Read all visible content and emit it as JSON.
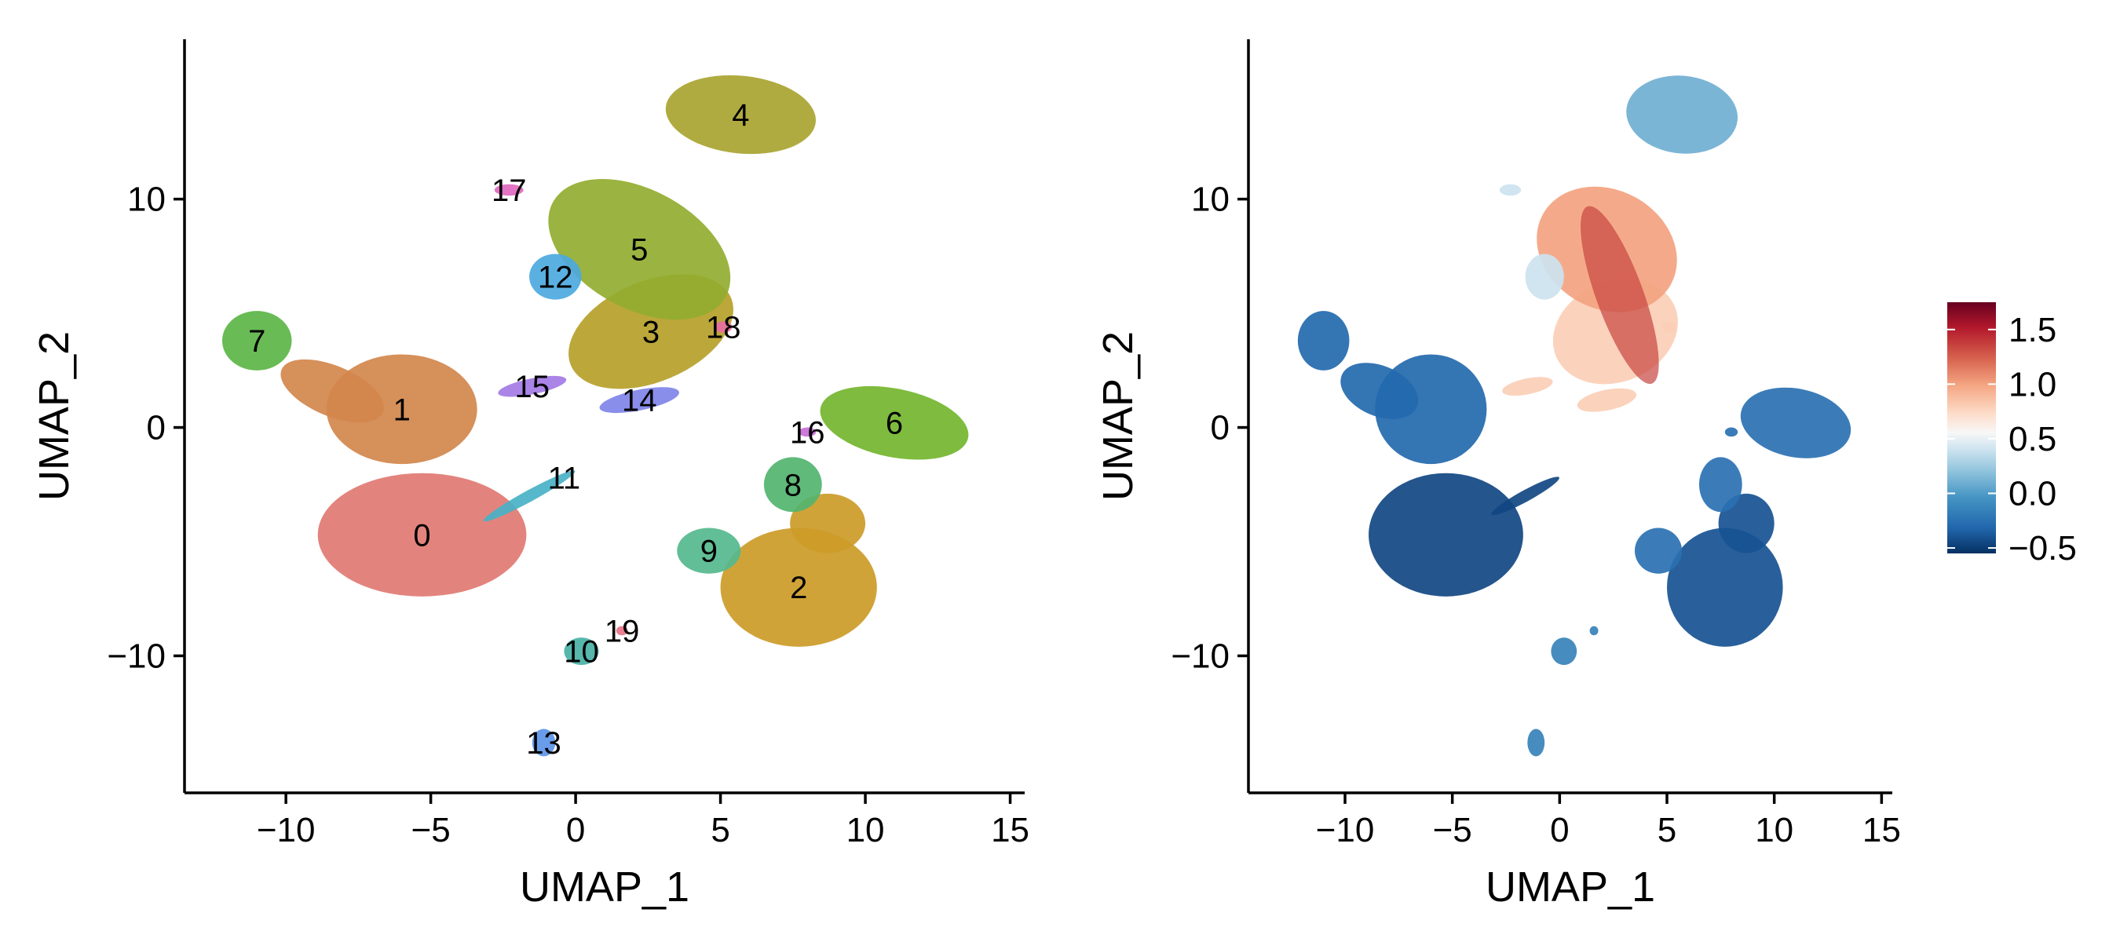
{
  "chart_data": [
    {
      "type": "scatter",
      "title": "",
      "xlabel": "UMAP_1",
      "ylabel": "UMAP_2",
      "xlim": [
        -13.5,
        15.5
      ],
      "ylim": [
        -16,
        17
      ],
      "xticks": [
        -10,
        -5,
        0,
        5,
        10,
        15
      ],
      "yticks": [
        -10,
        0,
        10
      ],
      "xtick_labels": [
        "−10",
        "−5",
        "0",
        "5",
        "10",
        "15"
      ],
      "ytick_labels": [
        "−10",
        "0",
        "10"
      ],
      "legend": "none (cluster numbers labeled on plot)",
      "clusters": [
        {
          "label": "0",
          "x": -5.3,
          "y": -4.7,
          "color": "#E07A72"
        },
        {
          "label": "1",
          "x": -6.0,
          "y": 0.8,
          "color": "#D2874C"
        },
        {
          "label": "2",
          "x": 7.7,
          "y": -7.0,
          "color": "#CC9B28"
        },
        {
          "label": "3",
          "x": 2.6,
          "y": 4.2,
          "color": "#B6A02A"
        },
        {
          "label": "4",
          "x": 5.7,
          "y": 13.7,
          "color": "#A9A430"
        },
        {
          "label": "5",
          "x": 2.2,
          "y": 7.8,
          "color": "#93AC30"
        },
        {
          "label": "6",
          "x": 11.0,
          "y": 0.2,
          "color": "#74B52E"
        },
        {
          "label": "7",
          "x": -11.0,
          "y": 3.8,
          "color": "#5CB547"
        },
        {
          "label": "8",
          "x": 7.5,
          "y": -2.5,
          "color": "#53B46F"
        },
        {
          "label": "9",
          "x": 4.6,
          "y": -5.4,
          "color": "#55B98E"
        },
        {
          "label": "10",
          "x": 0.2,
          "y": -9.8,
          "color": "#49B1A6"
        },
        {
          "label": "11",
          "x": -0.4,
          "y": -2.2,
          "color": "#48B2C6"
        },
        {
          "label": "12",
          "x": -0.7,
          "y": 6.6,
          "color": "#4CA9DE"
        },
        {
          "label": "13",
          "x": -1.1,
          "y": -13.8,
          "color": "#5C95E8"
        },
        {
          "label": "14",
          "x": 2.2,
          "y": 1.2,
          "color": "#7F84E8"
        },
        {
          "label": "15",
          "x": -1.5,
          "y": 1.8,
          "color": "#A47AE5"
        },
        {
          "label": "16",
          "x": 8.0,
          "y": -0.2,
          "color": "#C96ED8"
        },
        {
          "label": "17",
          "x": -2.3,
          "y": 10.4,
          "color": "#E068BF"
        },
        {
          "label": "18",
          "x": 5.1,
          "y": 4.4,
          "color": "#E86FA2"
        },
        {
          "label": "19",
          "x": 1.6,
          "y": -8.9,
          "color": "#E87488"
        }
      ]
    },
    {
      "type": "scatter",
      "title": "",
      "xlabel": "UMAP_1",
      "ylabel": "UMAP_2",
      "xlim": [
        -14.5,
        15.5
      ],
      "ylim": [
        -16,
        17
      ],
      "xticks": [
        -10,
        -5,
        0,
        5,
        10,
        15
      ],
      "yticks": [
        -10,
        0,
        10
      ],
      "xtick_labels": [
        "−10",
        "−5",
        "0",
        "5",
        "10",
        "15"
      ],
      "ytick_labels": [
        "−10",
        "0",
        "10"
      ],
      "colorbar": {
        "min": -0.55,
        "max": 1.75,
        "ticks": [
          1.5,
          1.0,
          0.5,
          0.0,
          -0.5
        ],
        "tick_labels": [
          "1.5",
          "1.0",
          "0.5",
          "0.0",
          "−0.5"
        ],
        "colormap": "RdBu_r",
        "position": "right"
      },
      "regions": [
        {
          "x": 5.7,
          "y": 13.7,
          "value": 0.1
        },
        {
          "x": 2.2,
          "y": 6.3,
          "value": 1.0
        },
        {
          "x": -0.7,
          "y": 6.6,
          "value": 0.4
        },
        {
          "x": 2.6,
          "y": 3.5,
          "value": 0.8
        },
        {
          "x": -11.0,
          "y": 3.8,
          "value": -0.3
        },
        {
          "x": -6.0,
          "y": 0.8,
          "value": -0.3
        },
        {
          "x": -5.3,
          "y": -4.7,
          "value": -0.45
        },
        {
          "x": 11.0,
          "y": 0.2,
          "value": -0.25
        },
        {
          "x": 7.7,
          "y": -7.0,
          "value": -0.4
        },
        {
          "x": 4.6,
          "y": -5.4,
          "value": -0.25
        },
        {
          "x": 0.2,
          "y": -9.8,
          "value": -0.15
        },
        {
          "x": -1.1,
          "y": -13.8,
          "value": -0.15
        }
      ]
    }
  ]
}
